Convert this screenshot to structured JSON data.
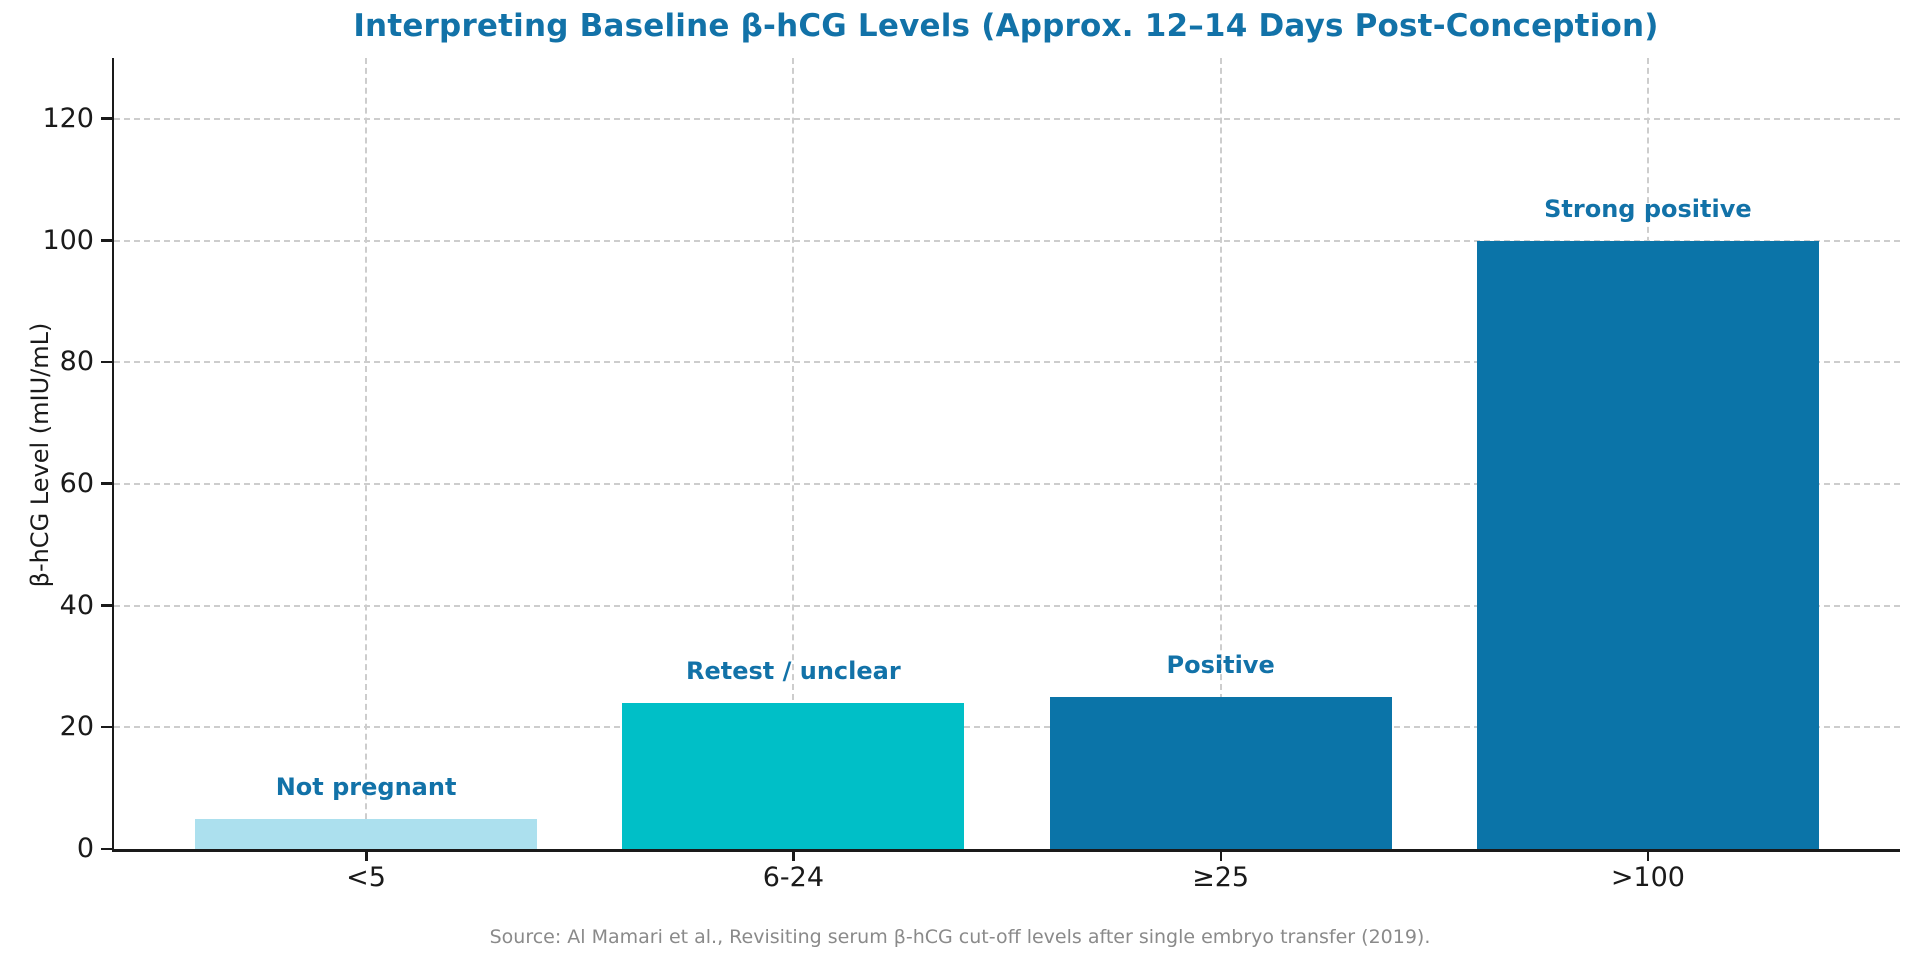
{
  "chart_data": {
    "type": "bar",
    "title": "Interpreting Baseline β-hCG Levels (Approx. 12–14 Days Post-Conception)",
    "ylabel": "β-hCG Level (mIU/mL)",
    "xlabel": "",
    "categories": [
      "<5",
      "6-24",
      "≥25",
      ">100"
    ],
    "values": [
      5,
      24,
      25,
      100
    ],
    "bar_labels": [
      "Not pregnant",
      "Retest / unclear",
      "Positive",
      "Strong positive"
    ],
    "bar_colors": [
      "#ACE0EE",
      "#00BFC7",
      "#0B74A8",
      "#0B74A8"
    ],
    "yticks": [
      0,
      20,
      40,
      60,
      80,
      100,
      120
    ],
    "ylim": [
      0,
      130
    ],
    "grid": "both-axes dashed",
    "legend": "none",
    "title_color": "#1272A8",
    "label_color": "#1272A8",
    "tick_color": "#1a1a1a",
    "grid_color": "#cdcdcd",
    "source_color": "#8a8a8a",
    "source_note": "Source: Al Mamari et al., Revisiting serum β-hCG cut-off levels after single embryo transfer (2019)."
  }
}
